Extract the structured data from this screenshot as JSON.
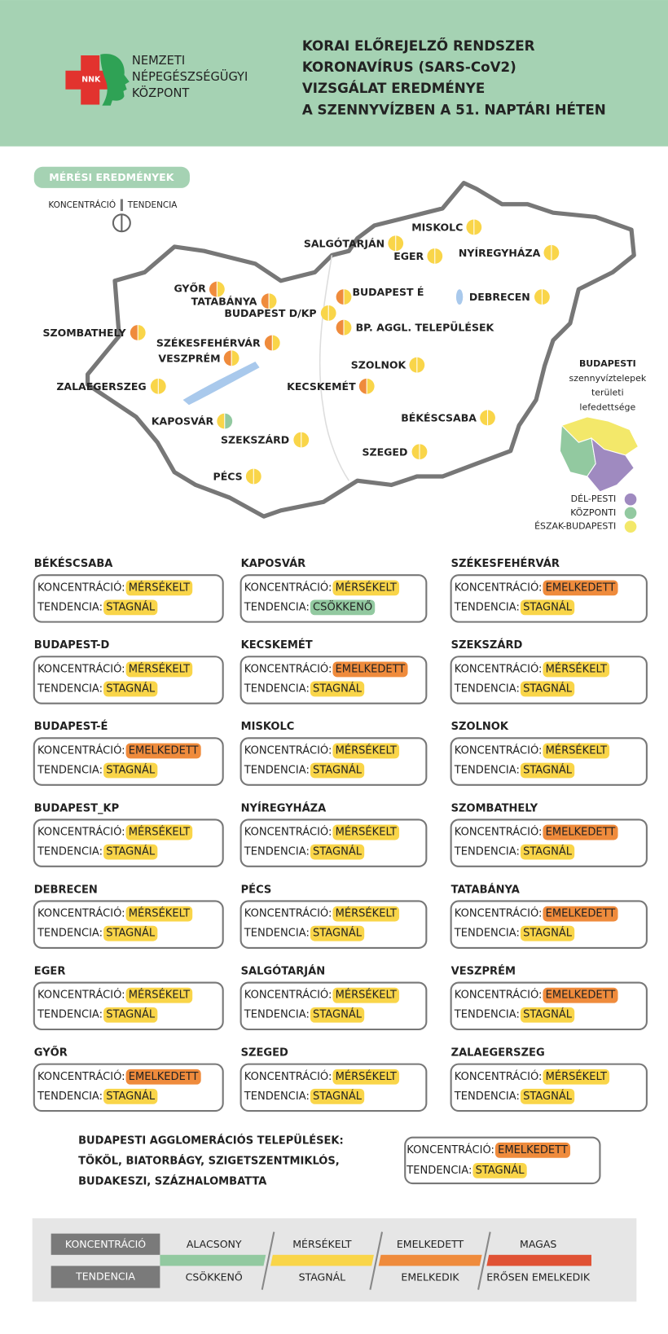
{
  "header": {
    "logo_badge": "NNK",
    "logo_text": [
      "NEMZETI",
      "NÉPEGÉSZSÉGÜGYI",
      "KÖZPONT"
    ],
    "title": [
      "KORAI ELŐREJELZŐ RENDSZER",
      "KORONAVÍRUS (SARS-CoV2)",
      "VIZSGÁLAT EREDMÉNYE",
      "A SZENNYVÍZBEN A 51. NAPTÁRI HÉTEN"
    ]
  },
  "map": {
    "section_label": "MÉRÉSI EREDMÉNYEK",
    "key_left": "KONCENTRÁCIÓ",
    "key_right": "TENDENCIA",
    "sites": [
      {
        "name": "MISKOLC",
        "colors": [
          "#f9d549",
          "#f9d549"
        ]
      },
      {
        "name": "SALGÓTARJÁN",
        "colors": [
          "#f9d549",
          "#f9d549"
        ]
      },
      {
        "name": "EGER",
        "colors": [
          "#f9d549",
          "#f9d549"
        ]
      },
      {
        "name": "NYÍREGYHÁZA",
        "colors": [
          "#f9d549",
          "#f9d549"
        ]
      },
      {
        "name": "GYŐR",
        "colors": [
          "#ef8b3c",
          "#f9d549"
        ]
      },
      {
        "name": "TATABÁNYA",
        "colors": [
          "#ef8b3c",
          "#f9d549"
        ]
      },
      {
        "name": "BUDAPEST D/KP",
        "colors": [
          "#f9d549",
          "#f9d549"
        ]
      },
      {
        "name": "BUDAPEST É",
        "colors": [
          "#ef8b3c",
          "#f9d549"
        ]
      },
      {
        "name": "BP. AGGL. TELEPÜLÉSEK",
        "colors": [
          "#ef8b3c",
          "#f9d549"
        ]
      },
      {
        "name": "DEBRECEN",
        "colors": [
          "#f9d549",
          "#f9d549"
        ]
      },
      {
        "name": "SZOMBATHELY",
        "colors": [
          "#ef8b3c",
          "#f9d549"
        ]
      },
      {
        "name": "SZÉKESFEHÉRVÁR",
        "colors": [
          "#ef8b3c",
          "#f9d549"
        ]
      },
      {
        "name": "VESZPRÉM",
        "colors": [
          "#ef8b3c",
          "#f9d549"
        ]
      },
      {
        "name": "SZOLNOK",
        "colors": [
          "#f9d549",
          "#f9d549"
        ]
      },
      {
        "name": "ZALAEGERSZEG",
        "colors": [
          "#f9d549",
          "#f9d549"
        ]
      },
      {
        "name": "KECSKEMÉT",
        "colors": [
          "#ef8b3c",
          "#f9d549"
        ]
      },
      {
        "name": "BÉKÉSCSABA",
        "colors": [
          "#f9d549",
          "#f9d549"
        ]
      },
      {
        "name": "KAPOSVÁR",
        "colors": [
          "#f9d549",
          "#92c9a0"
        ]
      },
      {
        "name": "SZEKSZÁRD",
        "colors": [
          "#f9d549",
          "#f9d549"
        ]
      },
      {
        "name": "SZEGED",
        "colors": [
          "#f9d549",
          "#f9d549"
        ]
      },
      {
        "name": "PÉCS",
        "colors": [
          "#f9d549",
          "#f9d549"
        ]
      }
    ],
    "budapest_title": [
      "BUDAPESTI",
      "szennyvíztelepek",
      "területi",
      "lefedettsége"
    ],
    "districts": [
      {
        "name": "DÉL-PESTI",
        "color": "#9f8ac0"
      },
      {
        "name": "KÖZPONTI",
        "color": "#92c9a0"
      },
      {
        "name": "ÉSZAK-BUDAPESTI",
        "color": "#f3e86a"
      }
    ]
  },
  "cards": {
    "concentration_label": "KONCENTRÁCIÓ:",
    "tendency_label": "TENDENCIA:",
    "items": [
      {
        "name": "BÉKÉSCSABA",
        "concentration": "MÉRSÉKELT",
        "tendency": "STAGNÁL"
      },
      {
        "name": "KAPOSVÁR",
        "concentration": "MÉRSÉKELT",
        "tendency": "CSÖKKENŐ"
      },
      {
        "name": "SZÉKESFEHÉRVÁR",
        "concentration": "EMELKEDETT",
        "tendency": "STAGNÁL"
      },
      {
        "name": "BUDAPEST-D",
        "concentration": "MÉRSÉKELT",
        "tendency": "STAGNÁL"
      },
      {
        "name": "KECSKEMÉT",
        "concentration": "EMELKEDETT",
        "tendency": "STAGNÁL"
      },
      {
        "name": "SZEKSZÁRD",
        "concentration": "MÉRSÉKELT",
        "tendency": "STAGNÁL"
      },
      {
        "name": "BUDAPEST-É",
        "concentration": "EMELKEDETT",
        "tendency": "STAGNÁL"
      },
      {
        "name": "MISKOLC",
        "concentration": "MÉRSÉKELT",
        "tendency": "STAGNÁL"
      },
      {
        "name": "SZOLNOK",
        "concentration": "MÉRSÉKELT",
        "tendency": "STAGNÁL"
      },
      {
        "name": "BUDAPEST_KP",
        "concentration": "MÉRSÉKELT",
        "tendency": "STAGNÁL"
      },
      {
        "name": "NYÍREGYHÁZA",
        "concentration": "MÉRSÉKELT",
        "tendency": "STAGNÁL"
      },
      {
        "name": "SZOMBATHELY",
        "concentration": "EMELKEDETT",
        "tendency": "STAGNÁL"
      },
      {
        "name": "DEBRECEN",
        "concentration": "MÉRSÉKELT",
        "tendency": "STAGNÁL"
      },
      {
        "name": "PÉCS",
        "concentration": "MÉRSÉKELT",
        "tendency": "STAGNÁL"
      },
      {
        "name": "TATABÁNYA",
        "concentration": "EMELKEDETT",
        "tendency": "STAGNÁL"
      },
      {
        "name": "EGER",
        "concentration": "MÉRSÉKELT",
        "tendency": "STAGNÁL"
      },
      {
        "name": "SALGÓTARJÁN",
        "concentration": "MÉRSÉKELT",
        "tendency": "STAGNÁL"
      },
      {
        "name": "VESZPRÉM",
        "concentration": "EMELKEDETT",
        "tendency": "STAGNÁL"
      },
      {
        "name": "GYŐR",
        "concentration": "EMELKEDETT",
        "tendency": "STAGNÁL"
      },
      {
        "name": "SZEGED",
        "concentration": "MÉRSÉKELT",
        "tendency": "STAGNÁL"
      },
      {
        "name": "ZALAEGERSZEG",
        "concentration": "MÉRSÉKELT",
        "tendency": "STAGNÁL"
      }
    ]
  },
  "agglomeration": {
    "lines": [
      "BUDAPESTI AGGLOMERÁCIÓS TELEPÜLÉSEK:",
      "TÖKÖL, BIATORBÁGY, SZIGETSZENTMIKLÓS,",
      "BUDAKESZI, SZÁZHALOMBATTA"
    ],
    "concentration": "EMELKEDETT",
    "tendency": "STAGNÁL"
  },
  "legend": {
    "concentration_title": "KONCENTRÁCIÓ",
    "tendency_title": "TENDENCIA",
    "levels": [
      {
        "concentration": "ALACSONY",
        "tendency": "CSÖKKENŐ",
        "color": "#92c9a0"
      },
      {
        "concentration": "MÉRSÉKELT",
        "tendency": "STAGNÁL",
        "color": "#f9d549"
      },
      {
        "concentration": "EMELKEDETT",
        "tendency": "EMELKEDIK",
        "color": "#ef8b3c"
      },
      {
        "concentration": "MAGAS",
        "tendency": "ERŐSEN EMELKEDIK",
        "color": "#e05235"
      }
    ]
  }
}
